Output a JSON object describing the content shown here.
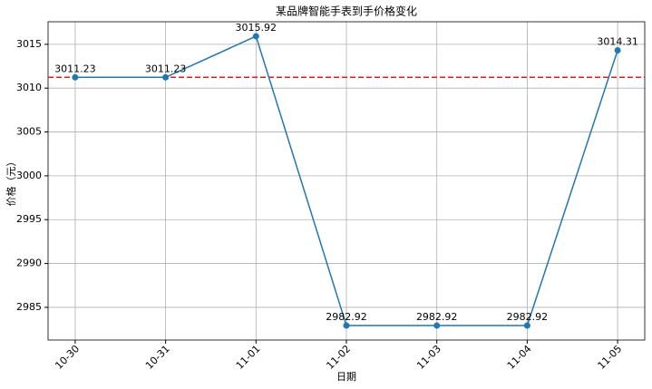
{
  "chart_data": {
    "type": "line",
    "title": "某品牌智能手表到手价格变化",
    "x_label": "日期",
    "y_label": "价格（元）",
    "categories": [
      "10-30",
      "10-31",
      "11-01",
      "11-02",
      "11-03",
      "11-04",
      "11-05"
    ],
    "series": [
      {
        "color": "#1f77b4",
        "values": [
          3011.23,
          3011.23,
          3015.92,
          2982.92,
          2982.92,
          2982.92,
          3014.31
        ]
      }
    ],
    "reference_line": {
      "value": 3011.23,
      "color": "#e41a1c",
      "style": "dashed"
    },
    "ylim": [
      2981.27,
      3017.57
    ],
    "yticks": [
      2985,
      2990,
      2995,
      3000,
      3005,
      3010,
      3015
    ],
    "grid": true
  }
}
